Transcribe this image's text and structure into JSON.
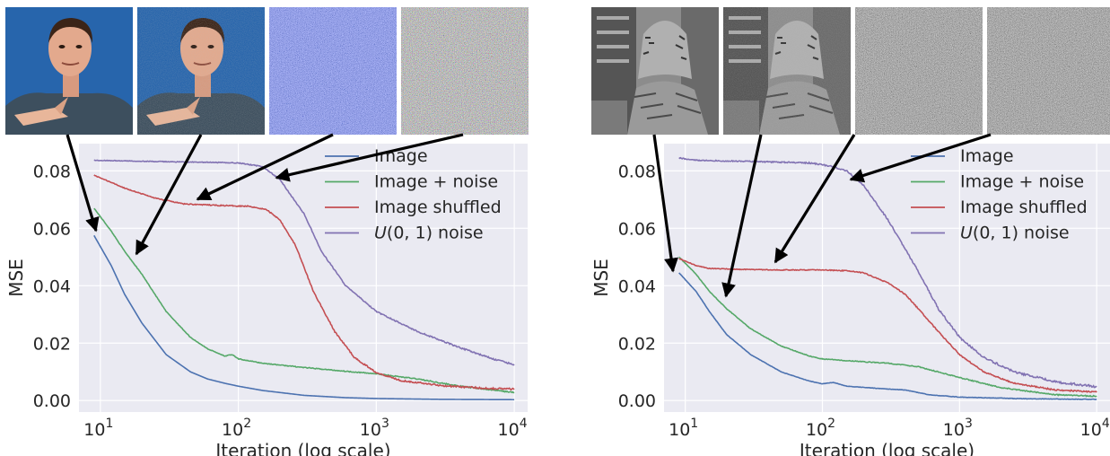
{
  "chart_data": [
    {
      "type": "line",
      "xscale": "log",
      "xlim": [
        7,
        12500
      ],
      "ylim": [
        -0.004,
        0.0895
      ],
      "xlabel": "Iteration (log scale)",
      "ylabel": "MSE",
      "xticks": [
        {
          "value": 10,
          "base": "10",
          "exp": "1"
        },
        {
          "value": 100,
          "base": "10",
          "exp": "2"
        },
        {
          "value": 1000,
          "base": "10",
          "exp": "3"
        },
        {
          "value": 10000,
          "base": "10",
          "exp": "4"
        }
      ],
      "yticks": [
        "0.00",
        "0.02",
        "0.04",
        "0.06",
        "0.08"
      ],
      "grid": true,
      "legend_position": "top-right",
      "thumbnails": [
        "color-portrait",
        "color-portrait-noise",
        "shuffled-pixels",
        "uniform-noise"
      ],
      "series": [
        {
          "name": "Image",
          "color": "#4c72b0",
          "noise": 0.0,
          "points": [
            [
              9,
              0.0575
            ],
            [
              12,
              0.047
            ],
            [
              15,
              0.037
            ],
            [
              20,
              0.027
            ],
            [
              30,
              0.016
            ],
            [
              45,
              0.01
            ],
            [
              60,
              0.0075
            ],
            [
              80,
              0.006
            ],
            [
              100,
              0.005
            ],
            [
              150,
              0.0035
            ],
            [
              300,
              0.0018
            ],
            [
              600,
              0.001
            ],
            [
              1000,
              0.0007
            ],
            [
              3000,
              0.0004
            ],
            [
              10000,
              0.0003
            ]
          ]
        },
        {
          "name": "Image + noise",
          "color": "#55a868",
          "noise": 0.0002,
          "points": [
            [
              9,
              0.067
            ],
            [
              12,
              0.059
            ],
            [
              15,
              0.052
            ],
            [
              20,
              0.044
            ],
            [
              30,
              0.031
            ],
            [
              45,
              0.022
            ],
            [
              60,
              0.018
            ],
            [
              80,
              0.0155
            ],
            [
              90,
              0.016
            ],
            [
              100,
              0.0145
            ],
            [
              150,
              0.013
            ],
            [
              300,
              0.0115
            ],
            [
              600,
              0.0102
            ],
            [
              1000,
              0.0093
            ],
            [
              2000,
              0.0075
            ],
            [
              4000,
              0.005
            ],
            [
              10000,
              0.0028
            ]
          ]
        },
        {
          "name": "Image shuffled",
          "color": "#c44e52",
          "noise": 0.0003,
          "points": [
            [
              9,
              0.0785
            ],
            [
              15,
              0.074
            ],
            [
              25,
              0.0705
            ],
            [
              40,
              0.0685
            ],
            [
              70,
              0.068
            ],
            [
              120,
              0.0677
            ],
            [
              160,
              0.0665
            ],
            [
              200,
              0.063
            ],
            [
              260,
              0.054
            ],
            [
              350,
              0.038
            ],
            [
              500,
              0.024
            ],
            [
              700,
              0.0148
            ],
            [
              1000,
              0.0098
            ],
            [
              1500,
              0.007
            ],
            [
              3000,
              0.0052
            ],
            [
              6000,
              0.0043
            ],
            [
              10000,
              0.004
            ]
          ]
        },
        {
          "name": "U(0, 1) noise",
          "color": "#8172b2",
          "noise": 0.00025,
          "points": [
            [
              9,
              0.0837
            ],
            [
              30,
              0.0832
            ],
            [
              100,
              0.0828
            ],
            [
              150,
              0.0815
            ],
            [
              200,
              0.077
            ],
            [
              300,
              0.065
            ],
            [
              400,
              0.052
            ],
            [
              600,
              0.04
            ],
            [
              1000,
              0.031
            ],
            [
              2000,
              0.024
            ],
            [
              4000,
              0.0185
            ],
            [
              7000,
              0.0145
            ],
            [
              10000,
              0.0125
            ]
          ]
        }
      ],
      "legend": [
        {
          "label": "Image"
        },
        {
          "label": "Image + noise"
        },
        {
          "label": "Image shuffled"
        },
        {
          "prefix": "U",
          "label": "(0, 1) noise"
        }
      ]
    },
    {
      "type": "line",
      "xscale": "log",
      "xlim": [
        7,
        12500
      ],
      "ylim": [
        -0.004,
        0.0895
      ],
      "xlabel": "Iteration (log scale)",
      "ylabel": "MSE",
      "xticks": [
        {
          "value": 10,
          "base": "10",
          "exp": "1"
        },
        {
          "value": 100,
          "base": "10",
          "exp": "2"
        },
        {
          "value": 1000,
          "base": "10",
          "exp": "3"
        },
        {
          "value": 10000,
          "base": "10",
          "exp": "4"
        }
      ],
      "yticks": [
        "0.00",
        "0.02",
        "0.04",
        "0.06",
        "0.08"
      ],
      "grid": true,
      "legend_position": "top-right",
      "thumbnails": [
        "grayscale-photo",
        "grayscale-photo-noise",
        "shuffled-pixels",
        "uniform-noise"
      ],
      "series": [
        {
          "name": "Image",
          "color": "#4c72b0",
          "noise": 0.0001,
          "points": [
            [
              9,
              0.0445
            ],
            [
              12,
              0.038
            ],
            [
              15,
              0.031
            ],
            [
              20,
              0.023
            ],
            [
              30,
              0.016
            ],
            [
              50,
              0.01
            ],
            [
              80,
              0.0068
            ],
            [
              100,
              0.0058
            ],
            [
              120,
              0.0063
            ],
            [
              150,
              0.005
            ],
            [
              300,
              0.004
            ],
            [
              400,
              0.0037
            ],
            [
              600,
              0.002
            ],
            [
              1000,
              0.0012
            ],
            [
              3000,
              0.0006
            ],
            [
              10000,
              0.0004
            ]
          ]
        },
        {
          "name": "Image + noise",
          "color": "#55a868",
          "noise": 0.0002,
          "points": [
            [
              9,
              0.05
            ],
            [
              12,
              0.044
            ],
            [
              15,
              0.038
            ],
            [
              20,
              0.032
            ],
            [
              30,
              0.025
            ],
            [
              50,
              0.019
            ],
            [
              80,
              0.0155
            ],
            [
              100,
              0.0145
            ],
            [
              200,
              0.0135
            ],
            [
              300,
              0.013
            ],
            [
              500,
              0.0118
            ],
            [
              1000,
              0.008
            ],
            [
              2000,
              0.0045
            ],
            [
              5000,
              0.002
            ],
            [
              10000,
              0.0015
            ]
          ]
        },
        {
          "name": "Image shuffled",
          "color": "#c44e52",
          "noise": 0.00025,
          "points": [
            [
              9,
              0.0495
            ],
            [
              12,
              0.047
            ],
            [
              15,
              0.046
            ],
            [
              25,
              0.0457
            ],
            [
              50,
              0.0455
            ],
            [
              100,
              0.0455
            ],
            [
              150,
              0.0452
            ],
            [
              200,
              0.0445
            ],
            [
              300,
              0.041
            ],
            [
              400,
              0.037
            ],
            [
              500,
              0.032
            ],
            [
              700,
              0.024
            ],
            [
              1000,
              0.016
            ],
            [
              1500,
              0.01
            ],
            [
              2500,
              0.006
            ],
            [
              5000,
              0.0037
            ],
            [
              10000,
              0.003
            ]
          ]
        },
        {
          "name": "U(0, 1) noise",
          "color": "#8172b2",
          "noise": 0.0004,
          "points": [
            [
              9,
              0.0845
            ],
            [
              12,
              0.0837
            ],
            [
              30,
              0.0833
            ],
            [
              80,
              0.0828
            ],
            [
              120,
              0.0815
            ],
            [
              150,
              0.08
            ],
            [
              200,
              0.075
            ],
            [
              300,
              0.063
            ],
            [
              500,
              0.045
            ],
            [
              700,
              0.032
            ],
            [
              1000,
              0.022
            ],
            [
              1500,
              0.015
            ],
            [
              2500,
              0.01
            ],
            [
              5000,
              0.0065
            ],
            [
              10000,
              0.0048
            ]
          ]
        }
      ],
      "legend": [
        {
          "label": "Image"
        },
        {
          "label": "Image + noise"
        },
        {
          "label": "Image shuffled"
        },
        {
          "prefix": "U",
          "label": "(0, 1) noise"
        }
      ]
    }
  ]
}
